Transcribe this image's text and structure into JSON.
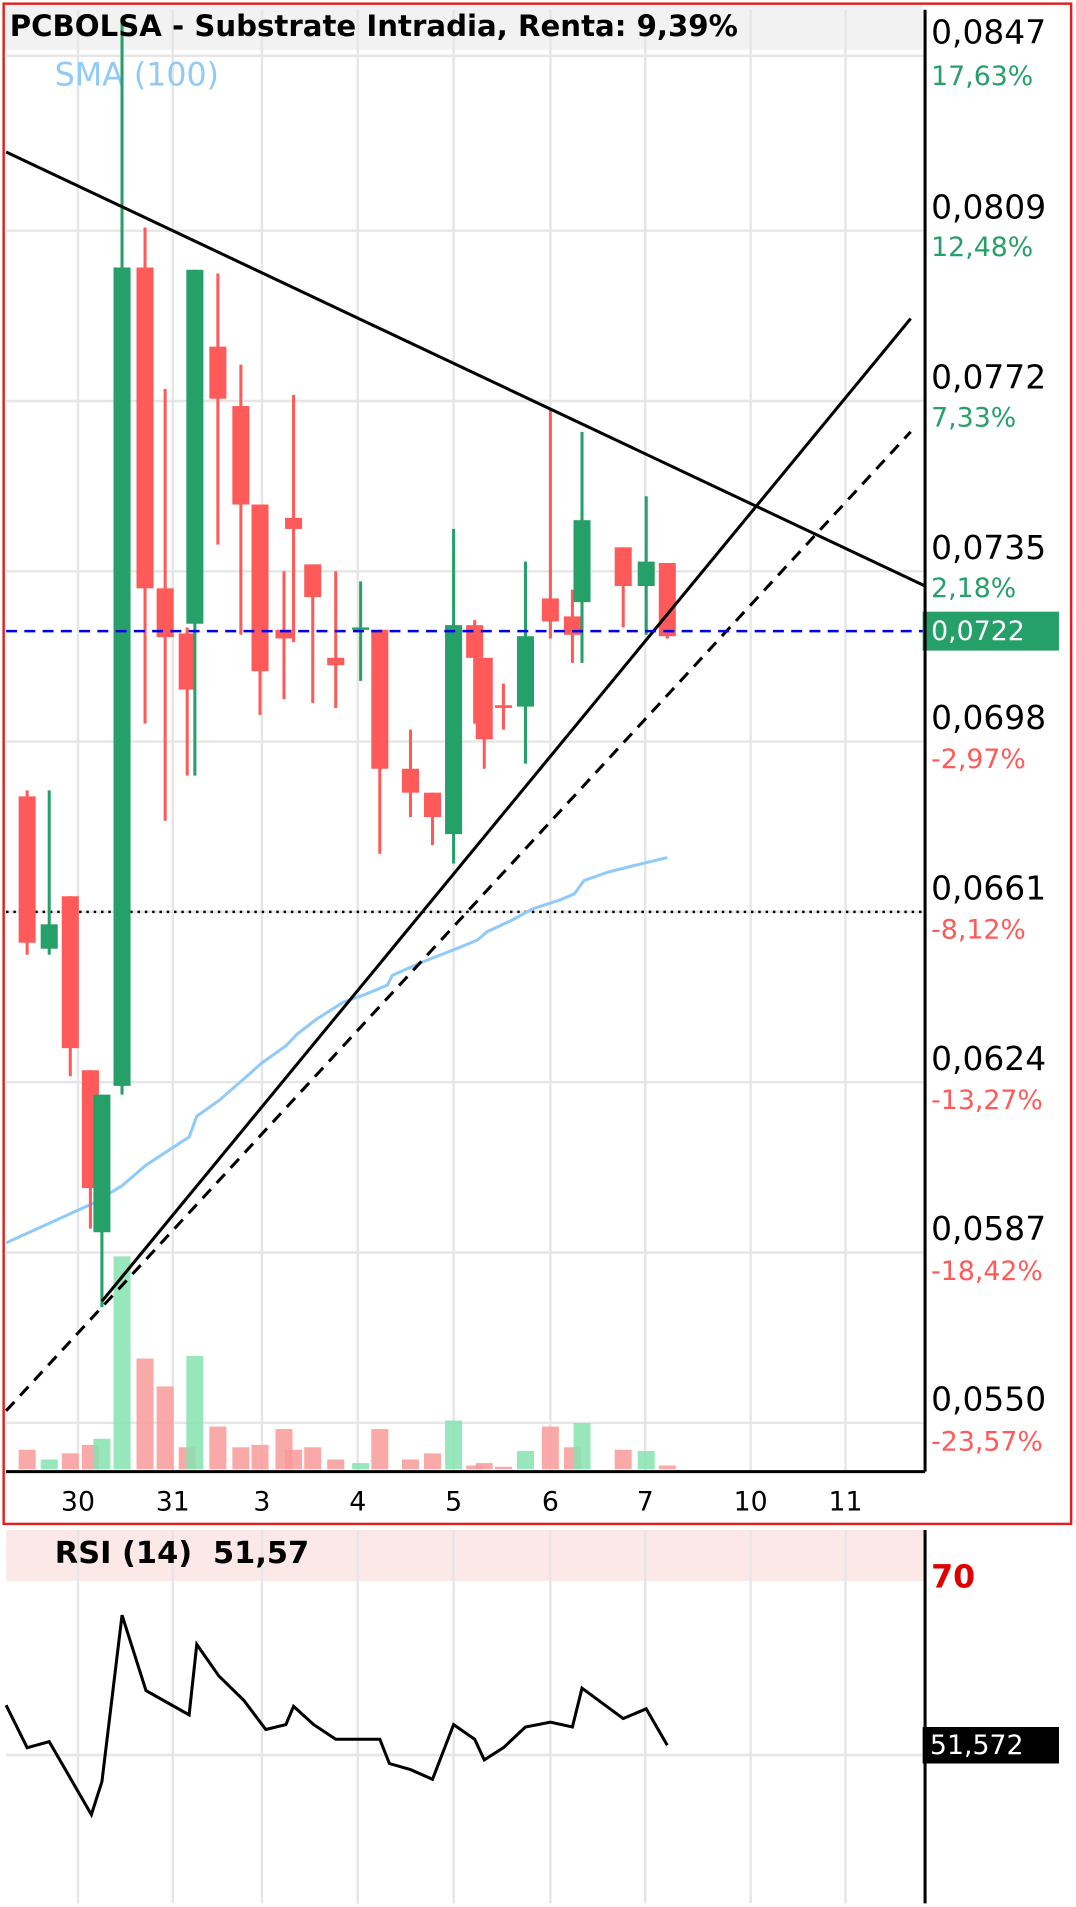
{
  "chart_data": [
    {
      "type": "candlestick",
      "title": "PCBOLSA - Substrate Intradia, Renta: 9,39%",
      "xlim": [
        -0.75,
        8.84
      ],
      "ylim": [
        0.05394,
        0.0857
      ],
      "y2lim": [
        -25.09,
        19.02
      ],
      "grid": true,
      "xticks": [
        {
          "value": 0,
          "label": "30"
        },
        {
          "value": 0.99,
          "label": "31"
        },
        {
          "value": 1.92,
          "label": "3"
        },
        {
          "value": 2.92,
          "label": "4"
        },
        {
          "value": 3.92,
          "label": "5"
        },
        {
          "value": 4.93,
          "label": "6"
        },
        {
          "value": 5.92,
          "label": "7"
        },
        {
          "value": 7.02,
          "label": "10"
        },
        {
          "value": 8.01,
          "label": "11"
        }
      ],
      "yticks": [
        {
          "value": 0.0847,
          "label": "0,0847"
        },
        {
          "value": 0.0809,
          "label": "0,0809"
        },
        {
          "value": 0.0772,
          "label": "0,0772"
        },
        {
          "value": 0.0735,
          "label": "0,0735"
        },
        {
          "value": 0.0698,
          "label": "0,0698"
        },
        {
          "value": 0.0661,
          "label": "0,0661"
        },
        {
          "value": 0.0624,
          "label": "0,0624"
        },
        {
          "value": 0.0587,
          "label": "0,0587"
        },
        {
          "value": 0.055,
          "label": "0,0550"
        }
      ],
      "y2ticks": [
        {
          "value": 17.63,
          "label": "17,63%"
        },
        {
          "value": 12.48,
          "label": "12,48%"
        },
        {
          "value": 7.33,
          "label": "7,33%"
        },
        {
          "value": 2.18,
          "label": "2,18%"
        },
        {
          "value": -2.97,
          "label": "-2,97%"
        },
        {
          "value": -8.12,
          "label": "-8,12%"
        },
        {
          "value": -13.27,
          "label": "-13,27%"
        },
        {
          "value": -18.42,
          "label": "-18,42%"
        },
        {
          "value": -23.57,
          "label": "-23,57%"
        }
      ],
      "up_color": "#26a069",
      "down_color": "#ff5a5a",
      "volume_up_color": "#86e3b0",
      "volume_down_color": "#f99a9a",
      "volume_lim": [
        0,
        200
      ],
      "candles": [
        {
          "x": -0.53,
          "open": 0.06861,
          "high": 0.06874,
          "low": 0.06517,
          "close": 0.06543
        },
        {
          "x": -0.3,
          "open": 0.0653,
          "high": 0.06874,
          "low": 0.06517,
          "close": 0.06583
        },
        {
          "x": -0.08,
          "open": 0.06644,
          "high": 0.06644,
          "low": 0.06253,
          "close": 0.06314
        },
        {
          "x": 0.13,
          "open": 0.06266,
          "high": 0.06266,
          "low": 0.05922,
          "close": 0.0601
        },
        {
          "x": 0.25,
          "open": 0.05914,
          "high": 0.06213,
          "low": 0.05751,
          "close": 0.06213
        },
        {
          "x": 0.46,
          "open": 0.06232,
          "high": 0.08552,
          "low": 0.06213,
          "close": 0.0801
        },
        {
          "x": 0.7,
          "open": 0.0801,
          "high": 0.08097,
          "low": 0.07019,
          "close": 0.07313
        },
        {
          "x": 0.91,
          "open": 0.07313,
          "high": 0.07746,
          "low": 0.06808,
          "close": 0.07207
        },
        {
          "x": 1.14,
          "open": 0.07215,
          "high": 0.07228,
          "low": 0.06906,
          "close": 0.07093
        },
        {
          "x": 1.22,
          "open": 0.07236,
          "high": 0.08005,
          "low": 0.06906,
          "close": 0.08005
        },
        {
          "x": 1.46,
          "open": 0.07838,
          "high": 0.07997,
          "low": 0.07408,
          "close": 0.07725
        },
        {
          "x": 1.7,
          "open": 0.07709,
          "high": 0.07799,
          "low": 0.07212,
          "close": 0.07495
        },
        {
          "x": 1.9,
          "open": 0.07495,
          "high": 0.07495,
          "low": 0.07038,
          "close": 0.07133
        },
        {
          "x": 2.15,
          "open": 0.07223,
          "high": 0.0735,
          "low": 0.07072,
          "close": 0.07204
        },
        {
          "x": 2.25,
          "open": 0.07466,
          "high": 0.07733,
          "low": 0.07196,
          "close": 0.07442
        },
        {
          "x": 2.45,
          "open": 0.07365,
          "high": 0.07365,
          "low": 0.07064,
          "close": 0.07294
        },
        {
          "x": 2.69,
          "open": 0.07162,
          "high": 0.0735,
          "low": 0.07053,
          "close": 0.07146
        },
        {
          "x": 2.95,
          "open": 0.07223,
          "high": 0.07328,
          "low": 0.07112,
          "close": 0.07228
        },
        {
          "x": 3.15,
          "open": 0.07223,
          "high": 0.07223,
          "low": 0.06736,
          "close": 0.06921
        },
        {
          "x": 3.47,
          "open": 0.06921,
          "high": 0.07006,
          "low": 0.06816,
          "close": 0.06869
        },
        {
          "x": 3.7,
          "open": 0.06869,
          "high": 0.06869,
          "low": 0.06755,
          "close": 0.06816
        },
        {
          "x": 3.92,
          "open": 0.06779,
          "high": 0.07442,
          "low": 0.06715,
          "close": 0.07233
        },
        {
          "x": 4.14,
          "open": 0.07233,
          "high": 0.07244,
          "low": 0.07019,
          "close": 0.07162
        },
        {
          "x": 4.24,
          "open": 0.07162,
          "high": 0.07162,
          "low": 0.06921,
          "close": 0.06985
        },
        {
          "x": 4.44,
          "open": 0.07059,
          "high": 0.07106,
          "low": 0.07006,
          "close": 0.07053
        },
        {
          "x": 4.67,
          "open": 0.07056,
          "high": 0.07371,
          "low": 0.06932,
          "close": 0.07209
        },
        {
          "x": 4.93,
          "open": 0.07291,
          "high": 0.07701,
          "low": 0.07204,
          "close": 0.07241
        },
        {
          "x": 5.16,
          "open": 0.07252,
          "high": 0.0731,
          "low": 0.07151,
          "close": 0.07212
        },
        {
          "x": 5.26,
          "open": 0.07283,
          "high": 0.07653,
          "low": 0.07151,
          "close": 0.07461
        },
        {
          "x": 5.69,
          "open": 0.07402,
          "high": 0.07402,
          "low": 0.07228,
          "close": 0.07318
        },
        {
          "x": 5.93,
          "open": 0.07318,
          "high": 0.07513,
          "low": 0.07212,
          "close": 0.07371
        },
        {
          "x": 6.15,
          "open": 0.07368,
          "high": 0.07368,
          "low": 0.07204,
          "close": 0.07209
        }
      ],
      "volumes": [
        16,
        8,
        13,
        20,
        25,
        175,
        91,
        68,
        18,
        93,
        35,
        18,
        20,
        33,
        16,
        18,
        8,
        5,
        33,
        8,
        13,
        40,
        3,
        5,
        2,
        15,
        35,
        18,
        38,
        16,
        15,
        3
      ],
      "series": [
        {
          "name": "SMA (100)",
          "color": "#90caf9",
          "x": [
            -0.75,
            0.14,
            0.46,
            0.71,
            1.16,
            1.24,
            1.47,
            1.73,
            1.92,
            2.17,
            2.29,
            2.49,
            2.77,
            2.99,
            3.23,
            3.28,
            3.57,
            3.95,
            4.17,
            4.27,
            4.52,
            4.75,
            5.03,
            5.18,
            5.28,
            5.54,
            5.79,
            6.15
          ],
          "values": [
            0.05891,
            0.05975,
            0.06015,
            0.0606,
            0.06121,
            0.06166,
            0.062,
            0.06247,
            0.06282,
            0.06319,
            0.06345,
            0.06377,
            0.06414,
            0.0643,
            0.06451,
            0.06472,
            0.06499,
            0.0653,
            0.06549,
            0.06567,
            0.06591,
            0.06617,
            0.06636,
            0.06649,
            0.06678,
            0.06697,
            0.0671,
            0.06728
          ]
        }
      ],
      "trendlines": [
        {
          "x": [
            -0.75,
            8.84
          ],
          "values": [
            0.08261,
            0.07318
          ],
          "color": "#000000",
          "dashed": false
        },
        {
          "x": [
            0.25,
            8.69
          ],
          "values": [
            0.05764,
            0.07899
          ],
          "color": "#000000",
          "dashed": false
        },
        {
          "x": [
            -0.75,
            8.69
          ],
          "values": [
            0.05526,
            0.07653
          ],
          "color": "#000000",
          "dashed": true
        }
      ],
      "last_price": {
        "value": 0.0722,
        "label": "0,0722",
        "color": "#0000ee"
      },
      "ref_line": 0.0661
    },
    {
      "type": "line",
      "title": "RSI (14)",
      "last_value": {
        "value": 51.57,
        "label": "51,57"
      },
      "axis_label": {
        "value": 51.572,
        "label": "51,572"
      },
      "xlim": [
        -0.75,
        8.84
      ],
      "ylim": [
        33.83,
        75.73
      ],
      "yticks": [
        70
      ],
      "band_color": "#fde8e8",
      "series": [
        {
          "color": "#000000",
          "x": [
            -0.75,
            -0.53,
            -0.3,
            -0.08,
            0.14,
            0.25,
            0.46,
            0.71,
            1.16,
            1.24,
            1.47,
            1.73,
            1.96,
            2.17,
            2.25,
            2.46,
            2.69,
            3.0,
            3.15,
            3.25,
            3.47,
            3.7,
            3.92,
            4.14,
            4.24,
            4.44,
            4.67,
            4.93,
            5.16,
            5.26,
            5.69,
            5.93,
            6.15
          ],
          "values": [
            56.07,
            51.3,
            51.98,
            47.89,
            43.79,
            47.48,
            66.17,
            57.71,
            54.98,
            62.89,
            59.35,
            56.62,
            53.34,
            53.89,
            55.94,
            53.89,
            52.25,
            52.25,
            52.25,
            49.52,
            48.84,
            47.75,
            53.89,
            52.25,
            49.93,
            51.3,
            53.62,
            54.16,
            53.62,
            57.98,
            54.57,
            55.66,
            51.57
          ]
        }
      ]
    }
  ]
}
